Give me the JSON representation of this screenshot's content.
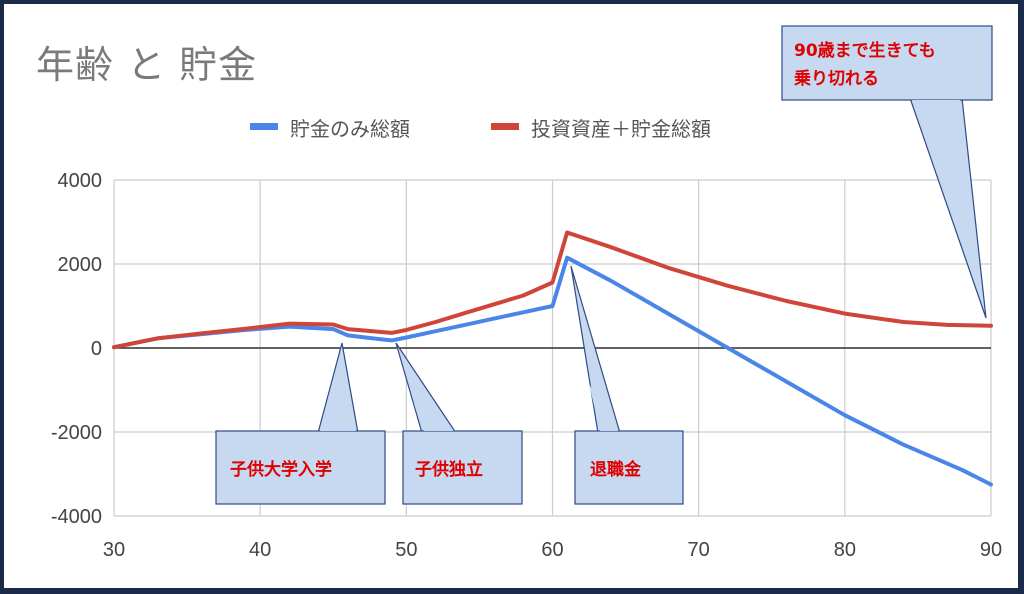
{
  "title": "年齢 と 貯金",
  "colors": {
    "savings": "#4a86e8",
    "invest": "#d0453a",
    "callout_fill": "#c6d9f1",
    "callout_stroke": "#2f4a86",
    "callout_text": "#e00000",
    "grid": "#cccccc",
    "zero_line": "#333333"
  },
  "chart_data": {
    "type": "line",
    "xlim": [
      30,
      90
    ],
    "ylim": [
      -4000,
      4000
    ],
    "x_ticks": [
      30,
      40,
      50,
      60,
      70,
      80,
      90
    ],
    "y_ticks": [
      4000,
      2000,
      0,
      -2000,
      -4000
    ],
    "grid": true,
    "legend_position": "top",
    "series": [
      {
        "name": "貯金のみ総額",
        "color": "#4a86e8",
        "points": [
          [
            30,
            20
          ],
          [
            33,
            230
          ],
          [
            36,
            330
          ],
          [
            39,
            430
          ],
          [
            42,
            510
          ],
          [
            45,
            450
          ],
          [
            46,
            300
          ],
          [
            47,
            260
          ],
          [
            48,
            220
          ],
          [
            49,
            180
          ],
          [
            50,
            250
          ],
          [
            52,
            400
          ],
          [
            54,
            550
          ],
          [
            56,
            700
          ],
          [
            58,
            850
          ],
          [
            60,
            1000
          ],
          [
            61,
            2150
          ],
          [
            64,
            1600
          ],
          [
            68,
            800
          ],
          [
            72,
            0
          ],
          [
            76,
            -800
          ],
          [
            80,
            -1600
          ],
          [
            84,
            -2300
          ],
          [
            88,
            -2900
          ],
          [
            90,
            -3250
          ]
        ]
      },
      {
        "name": "投資資産＋貯金総額",
        "color": "#d0453a",
        "points": [
          [
            30,
            20
          ],
          [
            33,
            230
          ],
          [
            36,
            350
          ],
          [
            39,
            460
          ],
          [
            42,
            580
          ],
          [
            45,
            560
          ],
          [
            46,
            450
          ],
          [
            47,
            420
          ],
          [
            48,
            390
          ],
          [
            49,
            360
          ],
          [
            50,
            430
          ],
          [
            52,
            620
          ],
          [
            54,
            830
          ],
          [
            56,
            1040
          ],
          [
            58,
            1250
          ],
          [
            60,
            1560
          ],
          [
            61,
            2750
          ],
          [
            64,
            2400
          ],
          [
            68,
            1900
          ],
          [
            72,
            1480
          ],
          [
            76,
            1120
          ],
          [
            80,
            820
          ],
          [
            84,
            620
          ],
          [
            87,
            550
          ],
          [
            90,
            530
          ]
        ]
      }
    ],
    "annotations": [
      {
        "id": "university",
        "text": "子供大学入学",
        "x": 45.5,
        "y": 100
      },
      {
        "id": "independence",
        "text": "子供独立",
        "x": 49,
        "y": 120
      },
      {
        "id": "retirement",
        "text": "退職金",
        "x": 61,
        "y": 2100
      },
      {
        "id": "age90",
        "lines": [
          "90歳まで生きても",
          "乗り切れる"
        ],
        "x": 89.8,
        "y": 700
      }
    ]
  }
}
